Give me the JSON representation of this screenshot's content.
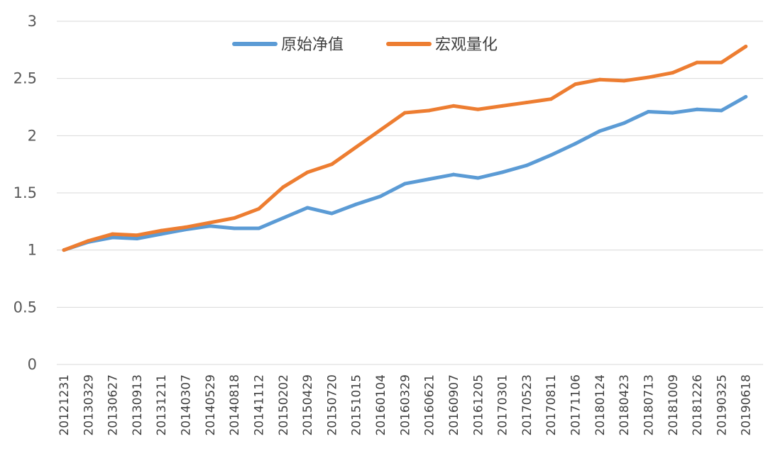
{
  "chart_data": {
    "type": "line",
    "title": "",
    "xlabel": "",
    "ylabel": "",
    "ylim": [
      0,
      3
    ],
    "yticks": [
      "0",
      "0.5",
      "1",
      "1.5",
      "2",
      "2.5",
      "3"
    ],
    "grid": "horizontal",
    "legend_position": "top-center",
    "categories": [
      "20121231",
      "20130329",
      "20130627",
      "20130913",
      "20131211",
      "20140307",
      "20140529",
      "20140818",
      "20141112",
      "20150202",
      "20150429",
      "20150720",
      "20151015",
      "20160104",
      "20160329",
      "20160621",
      "20160907",
      "20161205",
      "20170301",
      "20170523",
      "20170811",
      "20171106",
      "20180124",
      "20180423",
      "20180713",
      "20181009",
      "20181226",
      "20190325",
      "20190618"
    ],
    "series": [
      {
        "name": "原始净值",
        "color": "#5b9bd5",
        "values": [
          1.0,
          1.07,
          1.11,
          1.1,
          1.14,
          1.18,
          1.21,
          1.19,
          1.19,
          1.28,
          1.37,
          1.32,
          1.4,
          1.47,
          1.58,
          1.62,
          1.66,
          1.63,
          1.68,
          1.74,
          1.83,
          1.93,
          2.04,
          2.11,
          2.21,
          2.2,
          2.23,
          2.22,
          2.34
        ]
      },
      {
        "name": "宏观量化",
        "color": "#ed7d31",
        "values": [
          1.0,
          1.08,
          1.14,
          1.13,
          1.17,
          1.2,
          1.24,
          1.28,
          1.36,
          1.55,
          1.68,
          1.75,
          1.9,
          2.05,
          2.2,
          2.22,
          2.26,
          2.23,
          2.26,
          2.29,
          2.32,
          2.45,
          2.49,
          2.48,
          2.51,
          2.55,
          2.64,
          2.64,
          2.78
        ]
      }
    ]
  }
}
